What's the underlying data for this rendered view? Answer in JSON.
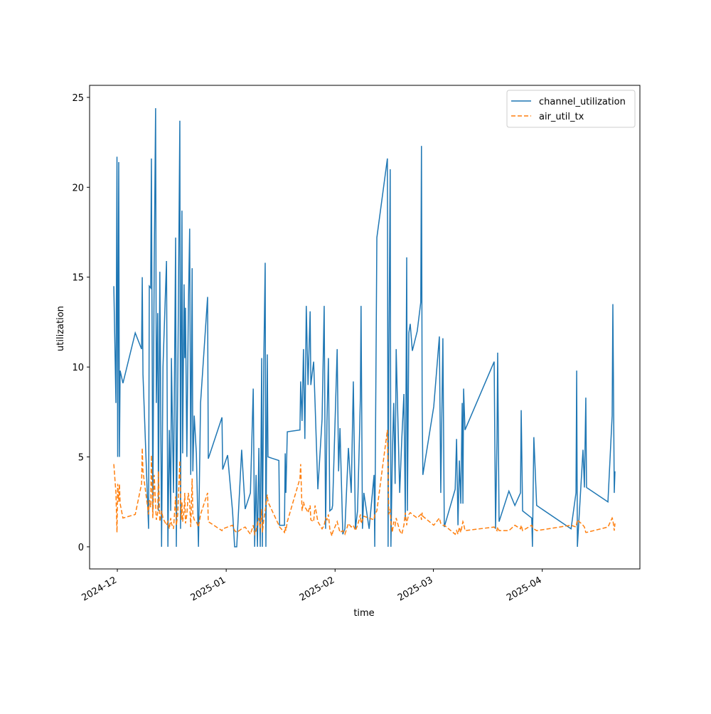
{
  "chart_data": {
    "type": "line",
    "xlabel": "time",
    "ylabel": "utilization",
    "legend": "upper right",
    "xlim": [
      20050.1,
      20206.8
    ],
    "ylim": [
      -1.23,
      25.67
    ],
    "xticks": [
      {
        "value": 20058,
        "label": "2024-12"
      },
      {
        "value": 20089,
        "label": "2025-01"
      },
      {
        "value": 20120,
        "label": "2025-02"
      },
      {
        "value": 20148,
        "label": "2025-03"
      },
      {
        "value": 20179,
        "label": "2025-04"
      }
    ],
    "yticks": [
      0,
      5,
      10,
      15,
      20,
      25
    ],
    "x": [
      20057.0,
      20057.6,
      20057.9,
      20058.1,
      20058.4,
      20058.6,
      20058.8,
      20059.6,
      20063.1,
      20064.9,
      20065.1,
      20065.3,
      20066.9,
      20067.1,
      20067.5,
      20067.7,
      20068.1,
      20068.5,
      20068.9,
      20069.1,
      20069.5,
      20069.7,
      20070.1,
      20070.6,
      20071.0,
      20072.0,
      20072.4,
      20072.8,
      20073.2,
      20073.4,
      20074.0,
      20074.6,
      20074.8,
      20075.2,
      20075.8,
      20076.0,
      20076.2,
      20076.4,
      20076.6,
      20077.0,
      20077.2,
      20077.4,
      20077.8,
      20078.2,
      20078.6,
      20078.9,
      20079.3,
      20079.5,
      20079.9,
      20080.5,
      20081.1,
      20081.7,
      20083.7,
      20083.9,
      20087.8,
      20088.0,
      20089.4,
      20090.8,
      20091.4,
      20092.0,
      20093.4,
      20094.4,
      20095.9,
      20096.7,
      20097.1,
      20097.5,
      20097.9,
      20098.3,
      20098.7,
      20099.1,
      20099.3,
      20099.7,
      20100.1,
      20100.3,
      20100.7,
      20100.9,
      20104.0,
      20104.2,
      20105.6,
      20105.8,
      20106.0,
      20106.4,
      20110.0,
      20110.2,
      20110.6,
      20111.0,
      20111.4,
      20111.8,
      20112.3,
      20112.9,
      20113.1,
      20113.9,
      20114.3,
      20115.1,
      20116.3,
      20116.9,
      20117.3,
      20117.7,
      20118.1,
      20118.5,
      20119.1,
      20119.3,
      20120.6,
      20121.0,
      20121.4,
      20122.2,
      20122.8,
      20123.8,
      20124.6,
      20125.2,
      20125.8,
      20126.4,
      20127.0,
      20127.2,
      20127.4,
      20127.8,
      20128.2,
      20129.7,
      20131.1,
      20131.3,
      20131.9,
      20134.9,
      20135.1,
      20135.3,
      20135.7,
      20135.9,
      20136.3,
      20136.7,
      20137.1,
      20137.4,
      20138.4,
      20139.0,
      20139.6,
      20140.0,
      20140.4,
      20140.6,
      20141.0,
      20141.4,
      20142.0,
      20143.4,
      20144.4,
      20144.6,
      20144.8,
      20145.0,
      20148.1,
      20149.7,
      20150.1,
      20150.7,
      20151.1,
      20154.2,
      20154.6,
      20155.0,
      20155.4,
      20155.8,
      20156.2,
      20156.4,
      20156.6,
      20157.0,
      20165.3,
      20165.7,
      20166.1,
      20166.3,
      20166.7,
      20169.5,
      20171.2,
      20172.8,
      20173.0,
      20173.4,
      20176.0,
      20176.2,
      20176.6,
      20177.4,
      20187.2,
      20188.6,
      20188.8,
      20189.0,
      20190.6,
      20191.0,
      20191.4,
      20191.6,
      20197.7,
      20198.9,
      20199.1,
      20199.5,
      20199.7
    ],
    "series": [
      {
        "name": "channel_utilization",
        "color": "#1f77b4",
        "dash": "solid",
        "values": [
          14.5,
          8,
          21.7,
          5,
          21.4,
          5,
          9.8,
          9.1,
          11.9,
          11,
          15,
          9.6,
          1,
          14.5,
          14.4,
          21.6,
          2,
          15.7,
          24.4,
          8,
          13,
          2,
          15.3,
          0,
          10,
          15.9,
          0,
          6.5,
          2,
          10.5,
          3,
          17.2,
          0,
          9,
          23.7,
          1,
          12,
          18.7,
          5.2,
          14.6,
          10.5,
          13.3,
          5,
          12.9,
          17.7,
          4,
          15.5,
          4.2,
          7.3,
          5.2,
          0,
          8,
          13.9,
          4.9,
          7.2,
          4.3,
          5.1,
          2,
          0,
          0,
          5.4,
          2.1,
          3,
          8.8,
          0,
          4,
          0,
          5.5,
          0,
          10.5,
          0,
          10.2,
          15.8,
          0,
          10.7,
          5,
          4.8,
          1.2,
          1.2,
          5.2,
          3,
          6.4,
          6.5,
          9.2,
          7,
          11,
          6,
          13.4,
          9,
          13.1,
          9,
          10.3,
          8,
          3.2,
          7.1,
          13.4,
          1,
          7,
          10.5,
          2,
          2.1,
          2.3,
          11,
          4.2,
          6.6,
          0.7,
          1,
          5.5,
          3,
          9.2,
          1,
          2,
          6.5,
          8.3,
          13.4,
          1,
          3,
          1,
          4,
          0,
          17.2,
          21.6,
          0,
          10,
          21,
          0,
          5,
          8,
          3.5,
          11,
          3,
          6,
          8.5,
          1.5,
          16.1,
          2,
          11.9,
          12.4,
          10.9,
          12,
          13.6,
          22.3,
          8,
          4,
          7.8,
          11.7,
          3,
          11.6,
          1.1,
          3.2,
          6,
          1.2,
          4.8,
          2.4,
          8,
          2.4,
          8.8,
          6.5,
          10.3,
          1,
          5.9,
          10.8,
          1.4,
          3.1,
          2.3,
          3,
          7.6,
          2,
          1.6,
          0,
          6.1,
          2.3,
          1,
          3,
          9.8,
          0,
          5.4,
          3.3,
          8.3,
          3.3,
          2.5,
          7.3,
          13.5,
          3,
          4.2
        ]
      },
      {
        "name": "air_util_tx",
        "color": "#ff7f0e",
        "dash": "dashed",
        "values": [
          4.6,
          3.0,
          0.8,
          3.5,
          2.5,
          3.5,
          2.4,
          1.6,
          1.8,
          3.5,
          5.5,
          4.2,
          1.8,
          2.6,
          2.2,
          5.1,
          1.6,
          4.0,
          2.3,
          1.5,
          1.9,
          4.2,
          1.4,
          2.0,
          1.6,
          1.2,
          1.4,
          1.0,
          1.6,
          1.3,
          1.0,
          2.8,
          1.2,
          1.8,
          4.8,
          3.0,
          1.5,
          2.5,
          1.4,
          2.0,
          3.0,
          1.3,
          1.8,
          3.0,
          2.5,
          1.1,
          3.8,
          1.8,
          1.5,
          1.4,
          1.1,
          1.8,
          3.0,
          1.4,
          0.9,
          1.0,
          1.1,
          1.2,
          0.9,
          0.8,
          1.0,
          1.1,
          0.7,
          1.2,
          0.7,
          0.9,
          1.3,
          1.6,
          1.0,
          2.1,
          0.8,
          1.5,
          2.0,
          2.3,
          2.9,
          2.5,
          1.2,
          1.1,
          0.8,
          1.1,
          0.9,
          1.4,
          3.8,
          4.6,
          2.0,
          2.5,
          2.2,
          2.1,
          1.9,
          2.3,
          1.5,
          1.4,
          2.3,
          1.4,
          1.0,
          1.2,
          1.6,
          1.5,
          1.8,
          1.0,
          0.6,
          0.8,
          1.4,
          1.1,
          0.8,
          0.9,
          0.7,
          1.3,
          1.1,
          1.2,
          0.9,
          1.2,
          1.6,
          1.8,
          1.3,
          1.5,
          1.7,
          1.6,
          1.5,
          1.8,
          2.0,
          6.5,
          4.0,
          1.8,
          2.1,
          1.4,
          0.8,
          1.4,
          1.2,
          1.6,
          0.9,
          0.7,
          1.2,
          1.9,
          1.2,
          1.5,
          1.8,
          1.9,
          1.8,
          1.6,
          1.8,
          1.5,
          1.9,
          1.7,
          1.2,
          1.6,
          1.3,
          1.2,
          1.2,
          0.7,
          0.9,
          0.7,
          1.1,
          0.8,
          1.2,
          1.4,
          1.3,
          0.9,
          1.1,
          1.0,
          0.9,
          1.1,
          0.9,
          0.9,
          1.2,
          1.0,
          1.2,
          0.9,
          1.2,
          1.1,
          1.0,
          0.9,
          1.2,
          1.1,
          1.3,
          1.5,
          1.2,
          1.1,
          0.8,
          0.8,
          1.1,
          1.6,
          1.5,
          0.9,
          1.3
        ]
      }
    ]
  }
}
